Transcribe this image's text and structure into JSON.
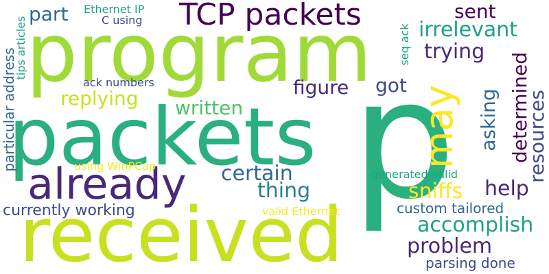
{
  "words": {
    "program": "program",
    "packets": "packets",
    "p": "p",
    "received": "received",
    "already": "already",
    "tcp_packets": "TCP packets",
    "may": "may",
    "part": "part",
    "ethernet_ip": "Ethernet IP",
    "c_using": "C using",
    "sent": "sent",
    "irrelevant": "irrelevant",
    "trying": "trying",
    "seq_ack": "seq ack",
    "tips_articles": "tips articles",
    "particular_address": "particular address",
    "ack_numbers": "ack numbers",
    "figure": "figure",
    "got": "got",
    "replying": "replying",
    "written": "written",
    "asking": "asking",
    "determined": "determined",
    "resources": "resources",
    "using_winpcap": "using WinPCap",
    "certain": "certain",
    "generated_valid": "generated valid",
    "thing": "thing",
    "sniffs": "sniffs",
    "help": "help",
    "currently_working": "currently working",
    "valid_ethernet": "valid Ethernet",
    "custom_tailored": "custom tailored",
    "accomplish": "accomplish",
    "problem": "problem",
    "parsing_done": "parsing done"
  },
  "colors": {
    "lime": "#a0da39",
    "yellow_green": "#c8e020",
    "yellow": "#fde725",
    "teal_green": "#2ab07f",
    "green": "#4ac16d",
    "teal": "#1fa187",
    "cyan_teal": "#277f8e",
    "steel_blue": "#31688e",
    "indigo": "#3e4a89",
    "purple": "#482878",
    "dark_purple": "#440154"
  }
}
